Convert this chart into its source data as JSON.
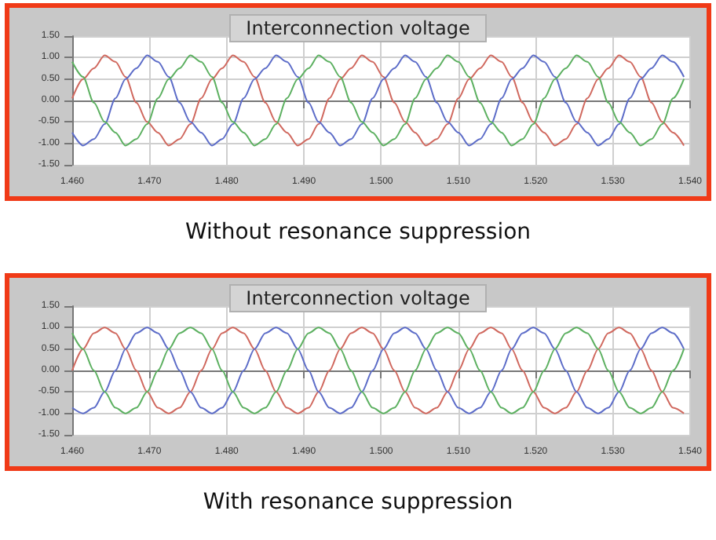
{
  "chart_data": [
    {
      "type": "line",
      "title": "Interconnection voltage",
      "annotations": [
        "Without resonance suppression"
      ],
      "x": [
        1.46,
        1.4614,
        1.4628,
        1.4642,
        1.4656,
        1.4669,
        1.4683,
        1.4697,
        1.4711,
        1.4725,
        1.4739,
        1.4753,
        1.4767,
        1.4781,
        1.4794,
        1.4808,
        1.4822,
        1.4836,
        1.485,
        1.4864,
        1.4878,
        1.4892,
        1.4906,
        1.4919,
        1.4933,
        1.4947,
        1.4961,
        1.4975,
        1.4989,
        1.5003,
        1.5017,
        1.5031,
        1.5044,
        1.5058,
        1.5072,
        1.5086,
        1.51,
        1.5114,
        1.5128,
        1.5142,
        1.5156,
        1.5169,
        1.5183,
        1.5197,
        1.5211,
        1.5225,
        1.5239,
        1.5253,
        1.5267,
        1.5281,
        1.5294,
        1.5308,
        1.5322,
        1.5336,
        1.535,
        1.5364,
        1.5378,
        1.5392
      ],
      "series": [
        {
          "color": "#d0685e",
          "values": [
            0.05,
            0.5,
            0.75,
            1.05,
            0.9,
            0.55,
            -0.05,
            -0.5,
            -0.75,
            -1.05,
            -0.9,
            -0.55,
            0.05,
            0.5,
            0.75,
            1.05,
            0.9,
            0.55,
            -0.05,
            -0.5,
            -0.75,
            -1.05,
            -0.9,
            -0.55,
            0.05,
            0.5,
            0.75,
            1.05,
            0.9,
            0.55,
            -0.05,
            -0.5,
            -0.75,
            -1.05,
            -0.9,
            -0.55,
            0.05,
            0.5,
            0.75,
            1.05,
            0.9,
            0.55,
            -0.05,
            -0.5,
            -0.75,
            -1.05,
            -0.9,
            -0.55,
            0.05,
            0.5,
            0.75,
            1.05,
            0.9,
            0.55,
            -0.05,
            -0.5,
            -0.75,
            -1.05
          ]
        },
        {
          "color": "#5c6cc8",
          "values": [
            -0.75,
            -1.05,
            -0.9,
            -0.55,
            0.05,
            0.5,
            0.75,
            1.05,
            0.9,
            0.55,
            -0.05,
            -0.5,
            -0.75,
            -1.05,
            -0.9,
            -0.55,
            0.05,
            0.5,
            0.75,
            1.05,
            0.9,
            0.55,
            -0.05,
            -0.5,
            -0.75,
            -1.05,
            -0.9,
            -0.55,
            0.05,
            0.5,
            0.75,
            1.05,
            0.9,
            0.55,
            -0.05,
            -0.5,
            -0.75,
            -1.05,
            -0.9,
            -0.55,
            0.05,
            0.5,
            0.75,
            1.05,
            0.9,
            0.55,
            -0.05,
            -0.5,
            -0.75,
            -1.05,
            -0.9,
            -0.55,
            0.05,
            0.5,
            0.75,
            1.05,
            0.9,
            0.55
          ]
        },
        {
          "color": "#5cb060",
          "values": [
            0.9,
            0.55,
            -0.05,
            -0.5,
            -0.75,
            -1.05,
            -0.9,
            -0.55,
            0.05,
            0.5,
            0.75,
            1.05,
            0.9,
            0.55,
            -0.05,
            -0.5,
            -0.75,
            -1.05,
            -0.9,
            -0.55,
            0.05,
            0.5,
            0.75,
            1.05,
            0.9,
            0.55,
            -0.05,
            -0.5,
            -0.75,
            -1.05,
            -0.9,
            -0.55,
            0.05,
            0.5,
            0.75,
            1.05,
            0.9,
            0.55,
            -0.05,
            -0.5,
            -0.75,
            -1.05,
            -0.9,
            -0.55,
            0.05,
            0.5,
            0.75,
            1.05,
            0.9,
            0.55,
            -0.05,
            -0.5,
            -0.75,
            -1.05,
            -0.9,
            -0.55,
            0.05,
            0.5
          ]
        }
      ],
      "xlim": [
        1.46,
        1.54
      ],
      "xticks": [
        {
          "value": 1.46,
          "label": "1.460"
        },
        {
          "value": 1.47,
          "label": "1.470"
        },
        {
          "value": 1.48,
          "label": "1.480"
        },
        {
          "value": 1.49,
          "label": "1.490"
        },
        {
          "value": 1.5,
          "label": "1.500"
        },
        {
          "value": 1.51,
          "label": "1.510"
        },
        {
          "value": 1.52,
          "label": "1.520"
        },
        {
          "value": 1.53,
          "label": "1.530"
        },
        {
          "value": 1.54,
          "label": "1.540"
        }
      ],
      "ylim": [
        -1.5,
        1.5
      ],
      "yticks": [
        {
          "value": -1.5,
          "label": "-1.50"
        },
        {
          "value": -1,
          "label": "-1.00"
        },
        {
          "value": -0.5,
          "label": "-0.50"
        },
        {
          "value": 0,
          "label": "0.00"
        },
        {
          "value": 0.5,
          "label": "0.50"
        },
        {
          "value": 1,
          "label": "1.00"
        },
        {
          "value": 1.5,
          "label": "1.50"
        }
      ],
      "grid": true,
      "marker": "none",
      "line_style": "solid"
    },
    {
      "type": "line",
      "title": "Interconnection voltage",
      "annotations": [
        "With resonance suppression"
      ],
      "x": [
        1.46,
        1.4614,
        1.4628,
        1.4642,
        1.4656,
        1.4669,
        1.4683,
        1.4697,
        1.4711,
        1.4725,
        1.4739,
        1.4753,
        1.4767,
        1.4781,
        1.4794,
        1.4808,
        1.4822,
        1.4836,
        1.485,
        1.4864,
        1.4878,
        1.4892,
        1.4906,
        1.4919,
        1.4933,
        1.4947,
        1.4961,
        1.4975,
        1.4989,
        1.5003,
        1.5017,
        1.5031,
        1.5044,
        1.5058,
        1.5072,
        1.5086,
        1.51,
        1.5114,
        1.5128,
        1.5142,
        1.5156,
        1.5169,
        1.5183,
        1.5197,
        1.5211,
        1.5225,
        1.5239,
        1.5253,
        1.5267,
        1.5281,
        1.5294,
        1.5308,
        1.5322,
        1.5336,
        1.535,
        1.5364,
        1.5378,
        1.5392
      ],
      "series": [
        {
          "color": "#d0685e",
          "values": [
            0,
            0.5,
            0.87,
            1,
            0.87,
            0.5,
            0,
            -0.5,
            -0.87,
            -1,
            -0.87,
            -0.5,
            0,
            0.5,
            0.87,
            1,
            0.87,
            0.5,
            0,
            -0.5,
            -0.87,
            -1,
            -0.87,
            -0.5,
            0,
            0.5,
            0.87,
            1,
            0.87,
            0.5,
            0,
            -0.5,
            -0.87,
            -1,
            -0.87,
            -0.5,
            0,
            0.5,
            0.87,
            1,
            0.87,
            0.5,
            0,
            -0.5,
            -0.87,
            -1,
            -0.87,
            -0.5,
            0,
            0.5,
            0.87,
            1,
            0.87,
            0.5,
            0,
            -0.5,
            -0.87,
            -1
          ]
        },
        {
          "color": "#5c6cc8",
          "values": [
            -0.87,
            -1,
            -0.87,
            -0.5,
            0,
            0.5,
            0.87,
            1,
            0.87,
            0.5,
            0,
            -0.5,
            -0.87,
            -1,
            -0.87,
            -0.5,
            0,
            0.5,
            0.87,
            1,
            0.87,
            0.5,
            0,
            -0.5,
            -0.87,
            -1,
            -0.87,
            -0.5,
            0,
            0.5,
            0.87,
            1,
            0.87,
            0.5,
            0,
            -0.5,
            -0.87,
            -1,
            -0.87,
            -0.5,
            0,
            0.5,
            0.87,
            1,
            0.87,
            0.5,
            0,
            -0.5,
            -0.87,
            -1,
            -0.87,
            -0.5,
            0,
            0.5,
            0.87,
            1,
            0.87,
            0.5
          ]
        },
        {
          "color": "#5cb060",
          "values": [
            0.87,
            0.5,
            0,
            -0.5,
            -0.87,
            -1,
            -0.87,
            -0.5,
            0,
            0.5,
            0.87,
            1,
            0.87,
            0.5,
            0,
            -0.5,
            -0.87,
            -1,
            -0.87,
            -0.5,
            0,
            0.5,
            0.87,
            1,
            0.87,
            0.5,
            0,
            -0.5,
            -0.87,
            -1,
            -0.87,
            -0.5,
            0,
            0.5,
            0.87,
            1,
            0.87,
            0.5,
            0,
            -0.5,
            -0.87,
            -1,
            -0.87,
            -0.5,
            0,
            0.5,
            0.87,
            1,
            0.87,
            0.5,
            0,
            -0.5,
            -0.87,
            -1,
            -0.87,
            -0.5,
            0,
            0.5
          ]
        }
      ],
      "xlim": [
        1.46,
        1.54
      ],
      "xticks": [
        {
          "value": 1.46,
          "label": "1.460"
        },
        {
          "value": 1.47,
          "label": "1.470"
        },
        {
          "value": 1.48,
          "label": "1.480"
        },
        {
          "value": 1.49,
          "label": "1.490"
        },
        {
          "value": 1.5,
          "label": "1.500"
        },
        {
          "value": 1.51,
          "label": "1.510"
        },
        {
          "value": 1.52,
          "label": "1.520"
        },
        {
          "value": 1.53,
          "label": "1.530"
        },
        {
          "value": 1.54,
          "label": "1.540"
        }
      ],
      "ylim": [
        -1.5,
        1.5
      ],
      "yticks": [
        {
          "value": -1.5,
          "label": "-1.50"
        },
        {
          "value": -1,
          "label": "-1.00"
        },
        {
          "value": -0.5,
          "label": "-0.50"
        },
        {
          "value": 0,
          "label": "0.00"
        },
        {
          "value": 0.5,
          "label": "0.50"
        },
        {
          "value": 1,
          "label": "1.00"
        },
        {
          "value": 1.5,
          "label": "1.50"
        }
      ],
      "grid": true,
      "marker": "none",
      "line_style": "solid"
    }
  ]
}
